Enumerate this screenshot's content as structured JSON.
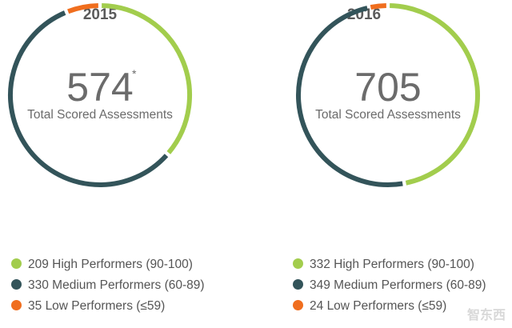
{
  "chart_data": [
    {
      "type": "pie",
      "title": "2015",
      "center_value": "574",
      "center_note": "*",
      "center_label": "Total Scored Assessments",
      "series": [
        {
          "name": "High Performers (90-100)",
          "value": 209,
          "color": "#a2cd4d"
        },
        {
          "name": "Medium Performers (60-89)",
          "value": 330,
          "color": "#33545a"
        },
        {
          "name": "Low Performers (≤59)",
          "value": 35,
          "color": "#f06e1e"
        }
      ]
    },
    {
      "type": "pie",
      "title": "2016",
      "center_value": "705",
      "center_note": "",
      "center_label": "Total Scored Assessments",
      "series": [
        {
          "name": "High Performers (90-100)",
          "value": 332,
          "color": "#a2cd4d"
        },
        {
          "name": "Medium Performers (60-89)",
          "value": 349,
          "color": "#33545a"
        },
        {
          "name": "Low Performers (≤59)",
          "value": 24,
          "color": "#f06e1e"
        }
      ]
    }
  ],
  "watermark": "智东西"
}
